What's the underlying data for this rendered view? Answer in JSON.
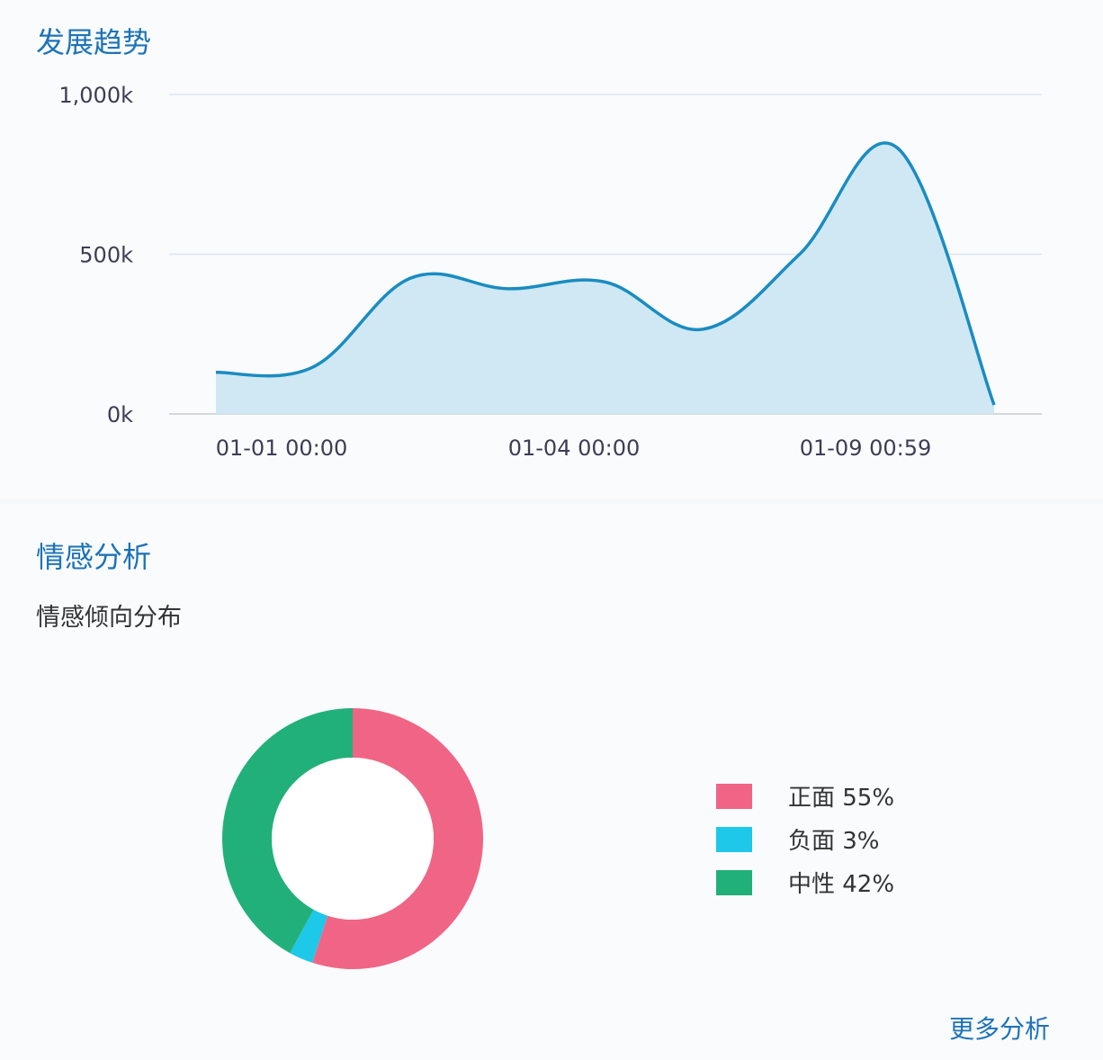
{
  "trend": {
    "title": "发展趋势",
    "chart_data": {
      "type": "area",
      "ylim": [
        0,
        1000
      ],
      "y_ticks": [
        "0k",
        "500k",
        "1,000k"
      ],
      "y_tick_values": [
        0,
        500,
        1000
      ],
      "x_ticks": [
        "01-01 00:00",
        "01-04 00:00",
        "01-09 00:59"
      ],
      "values": [
        130,
        147,
        425,
        392,
        413,
        265,
        500,
        834,
        28
      ],
      "grid": true,
      "line_color": "#1a8cc0",
      "fill_color": "#cfe8f3"
    }
  },
  "sentiment": {
    "title": "情感分析",
    "subtitle": "情感倾向分布",
    "chart_data": {
      "type": "pie",
      "donut": true,
      "slices": [
        {
          "name": "正面",
          "value": 55,
          "label": "正面 55%",
          "color": "#f06585"
        },
        {
          "name": "负面",
          "value": 3,
          "label": "负面 3%",
          "color": "#1ec8e8"
        },
        {
          "name": "中性",
          "value": 42,
          "label": "中性 42%",
          "color": "#22b07a"
        }
      ],
      "legend": "right"
    },
    "more_link": "更多分析"
  }
}
